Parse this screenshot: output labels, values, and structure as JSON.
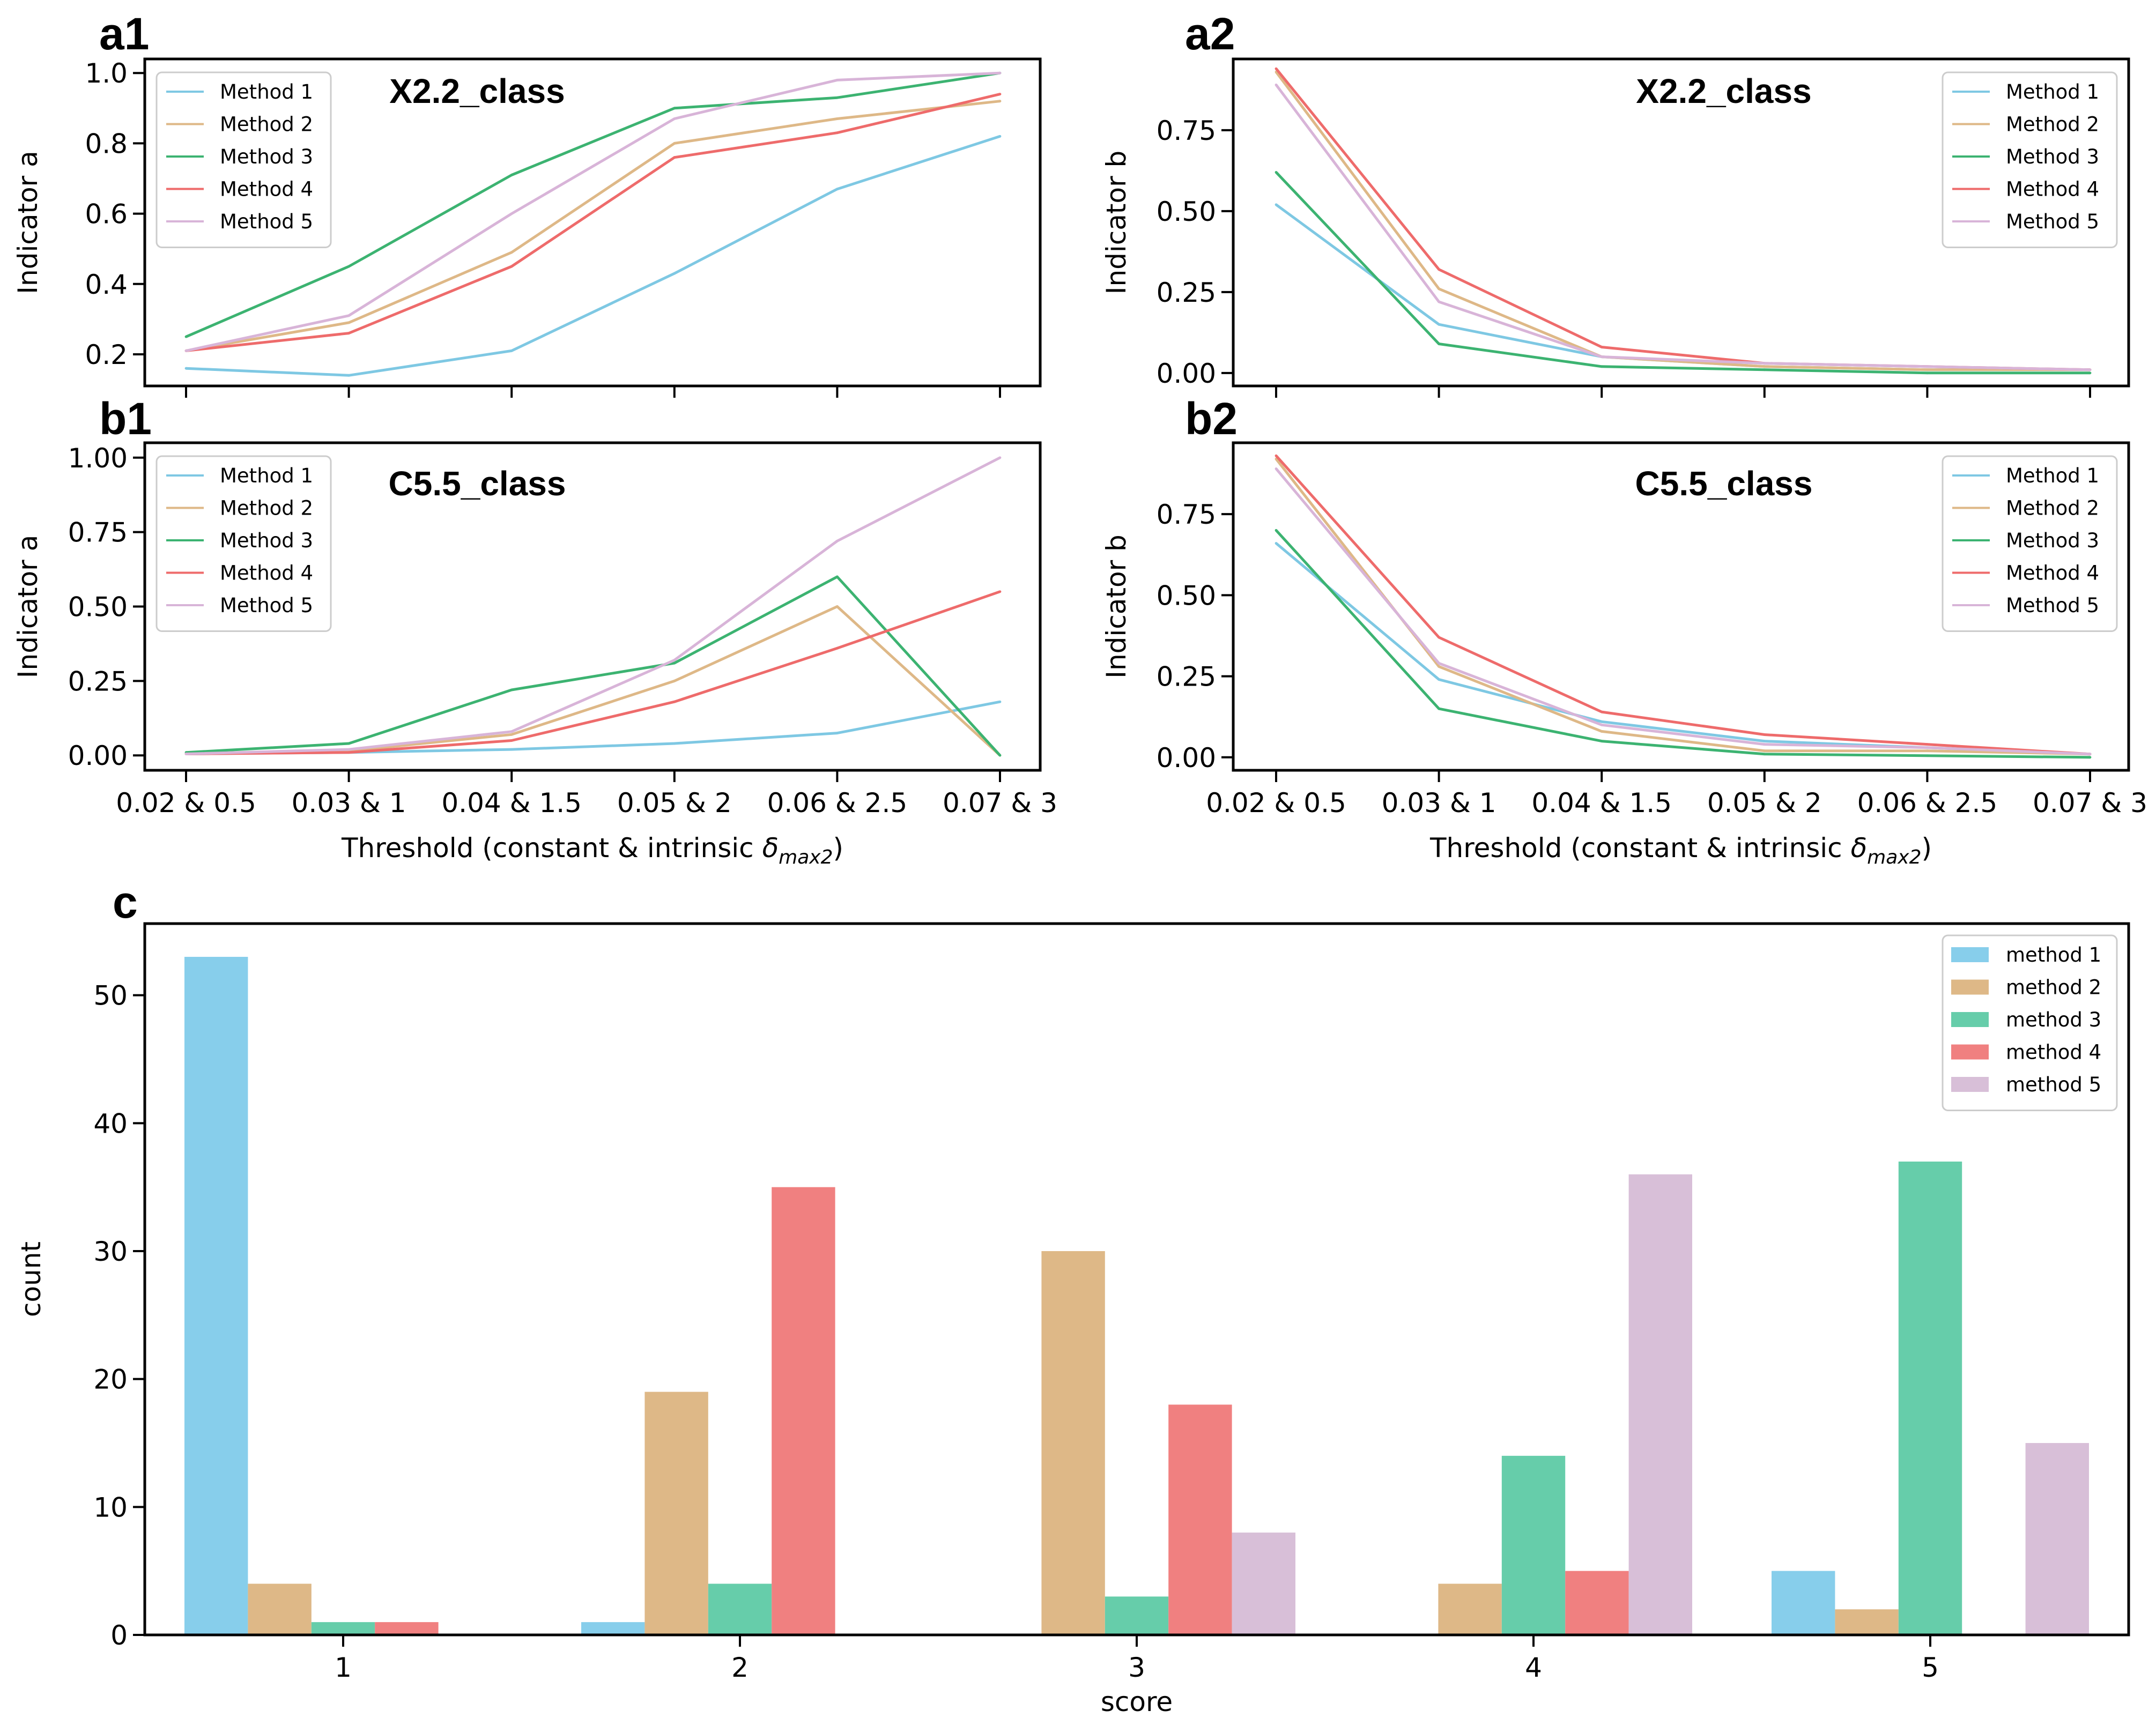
{
  "colors": {
    "method1": "#7ec8e3",
    "method2": "#deb887",
    "method3": "#3cb371",
    "method4": "#ee6b6b",
    "method5": "#d8b4d8",
    "bar_method1": "#87ceeb",
    "bar_method2": "#deb887",
    "bar_method3": "#66cdaa",
    "bar_method4": "#f08080",
    "bar_method5": "#d8bfd8"
  },
  "shared": {
    "xlabel_prefix": "Threshold (constant & intrinsic ",
    "xlabel_symbol": "δ",
    "xlabel_subscript": "max2",
    "xlabel_suffix": ")"
  },
  "chart_data": [
    {
      "id": "a1",
      "panel_label": "a1",
      "type": "line",
      "title": "X2.2_class",
      "ylabel": "Indicator a",
      "categories": [
        "0.02 & 0.5",
        "0.03 & 1",
        "0.04 & 1.5",
        "0.05 & 2",
        "0.06 & 2.5",
        "0.07 & 3"
      ],
      "show_xtick_labels": false,
      "ylim": [
        0.11,
        1.04
      ],
      "yticks": [
        0.2,
        0.4,
        0.6,
        0.8,
        1.0
      ],
      "ytick_labels": [
        "0.2",
        "0.4",
        "0.6",
        "0.8",
        "1.0"
      ],
      "legend_position": "top-left",
      "series": [
        {
          "name": "Method 1",
          "values": [
            0.16,
            0.14,
            0.21,
            0.43,
            0.67,
            0.82
          ]
        },
        {
          "name": "Method 2",
          "values": [
            0.21,
            0.29,
            0.49,
            0.8,
            0.87,
            0.92
          ]
        },
        {
          "name": "Method 3",
          "values": [
            0.25,
            0.45,
            0.71,
            0.9,
            0.93,
            1.0
          ]
        },
        {
          "name": "Method 4",
          "values": [
            0.21,
            0.26,
            0.45,
            0.76,
            0.83,
            0.94
          ]
        },
        {
          "name": "Method 5",
          "values": [
            0.21,
            0.31,
            0.6,
            0.87,
            0.98,
            1.0
          ]
        }
      ]
    },
    {
      "id": "a2",
      "panel_label": "a2",
      "type": "line",
      "title": "X2.2_class",
      "ylabel": "Indicator b",
      "categories": [
        "0.02 & 0.5",
        "0.03 & 1",
        "0.04 & 1.5",
        "0.05 & 2",
        "0.06 & 2.5",
        "0.07 & 3"
      ],
      "show_xtick_labels": false,
      "ylim": [
        -0.04,
        0.97
      ],
      "yticks": [
        0.0,
        0.25,
        0.5,
        0.75
      ],
      "ytick_labels": [
        "0.00",
        "0.25",
        "0.50",
        "0.75"
      ],
      "legend_position": "top-right",
      "series": [
        {
          "name": "Method 1",
          "values": [
            0.52,
            0.15,
            0.05,
            0.02,
            0.01,
            0.01
          ]
        },
        {
          "name": "Method 2",
          "values": [
            0.93,
            0.26,
            0.05,
            0.02,
            0.01,
            0.01
          ]
        },
        {
          "name": "Method 3",
          "values": [
            0.62,
            0.09,
            0.02,
            0.01,
            0.0,
            0.0
          ]
        },
        {
          "name": "Method 4",
          "values": [
            0.94,
            0.32,
            0.08,
            0.03,
            0.02,
            0.01
          ]
        },
        {
          "name": "Method 5",
          "values": [
            0.89,
            0.22,
            0.05,
            0.03,
            0.02,
            0.01
          ]
        }
      ]
    },
    {
      "id": "b1",
      "panel_label": "b1",
      "type": "line",
      "title": "C5.5_class",
      "ylabel": "Indicator a",
      "categories": [
        "0.02 & 0.5",
        "0.03 & 1",
        "0.04 & 1.5",
        "0.05 & 2",
        "0.06 & 2.5",
        "0.07 & 3"
      ],
      "show_xtick_labels": true,
      "ylim": [
        -0.05,
        1.05
      ],
      "yticks": [
        0.0,
        0.25,
        0.5,
        0.75,
        1.0
      ],
      "ytick_labels": [
        "0.00",
        "0.25",
        "0.50",
        "0.75",
        "1.00"
      ],
      "legend_position": "top-left",
      "series": [
        {
          "name": "Method 1",
          "values": [
            0.005,
            0.01,
            0.02,
            0.04,
            0.075,
            0.18
          ]
        },
        {
          "name": "Method 2",
          "values": [
            0.005,
            0.015,
            0.07,
            0.25,
            0.5,
            0.0
          ]
        },
        {
          "name": "Method 3",
          "values": [
            0.01,
            0.04,
            0.22,
            0.31,
            0.6,
            0.0
          ]
        },
        {
          "name": "Method 4",
          "values": [
            0.005,
            0.01,
            0.05,
            0.18,
            0.36,
            0.55
          ]
        },
        {
          "name": "Method 5",
          "values": [
            0.005,
            0.02,
            0.08,
            0.32,
            0.72,
            1.0
          ]
        }
      ]
    },
    {
      "id": "b2",
      "panel_label": "b2",
      "type": "line",
      "title": "C5.5_class",
      "ylabel": "Indicator b",
      "categories": [
        "0.02 & 0.5",
        "0.03 & 1",
        "0.04 & 1.5",
        "0.05 & 2",
        "0.06 & 2.5",
        "0.07 & 3"
      ],
      "show_xtick_labels": true,
      "ylim": [
        -0.04,
        0.97
      ],
      "yticks": [
        0.0,
        0.25,
        0.5,
        0.75
      ],
      "ytick_labels": [
        "0.00",
        "0.25",
        "0.50",
        "0.75"
      ],
      "legend_position": "top-right",
      "series": [
        {
          "name": "Method 1",
          "values": [
            0.66,
            0.24,
            0.11,
            0.05,
            0.03,
            0.01
          ]
        },
        {
          "name": "Method 2",
          "values": [
            0.92,
            0.28,
            0.08,
            0.02,
            0.02,
            0.01
          ]
        },
        {
          "name": "Method 3",
          "values": [
            0.7,
            0.15,
            0.05,
            0.01,
            0.005,
            0.0
          ]
        },
        {
          "name": "Method 4",
          "values": [
            0.93,
            0.37,
            0.14,
            0.07,
            0.04,
            0.01
          ]
        },
        {
          "name": "Method 5",
          "values": [
            0.89,
            0.29,
            0.1,
            0.04,
            0.03,
            0.01
          ]
        }
      ]
    },
    {
      "id": "c",
      "panel_label": "c",
      "type": "bar",
      "title": "",
      "xlabel": "score",
      "ylabel": "count",
      "categories": [
        "1",
        "2",
        "3",
        "4",
        "5"
      ],
      "ylim": [
        0,
        55.6
      ],
      "yticks": [
        0,
        10,
        20,
        30,
        40,
        50
      ],
      "ytick_labels": [
        "0",
        "10",
        "20",
        "30",
        "40",
        "50"
      ],
      "legend_position": "top-right",
      "series": [
        {
          "name": "method 1",
          "values": [
            53,
            1,
            0,
            0,
            5
          ]
        },
        {
          "name": "method 2",
          "values": [
            4,
            19,
            30,
            4,
            2
          ]
        },
        {
          "name": "method 3",
          "values": [
            1,
            4,
            3,
            14,
            37
          ]
        },
        {
          "name": "method 4",
          "values": [
            1,
            35,
            18,
            5,
            0
          ]
        },
        {
          "name": "method 5",
          "values": [
            0,
            0,
            8,
            36,
            15
          ]
        }
      ]
    }
  ]
}
